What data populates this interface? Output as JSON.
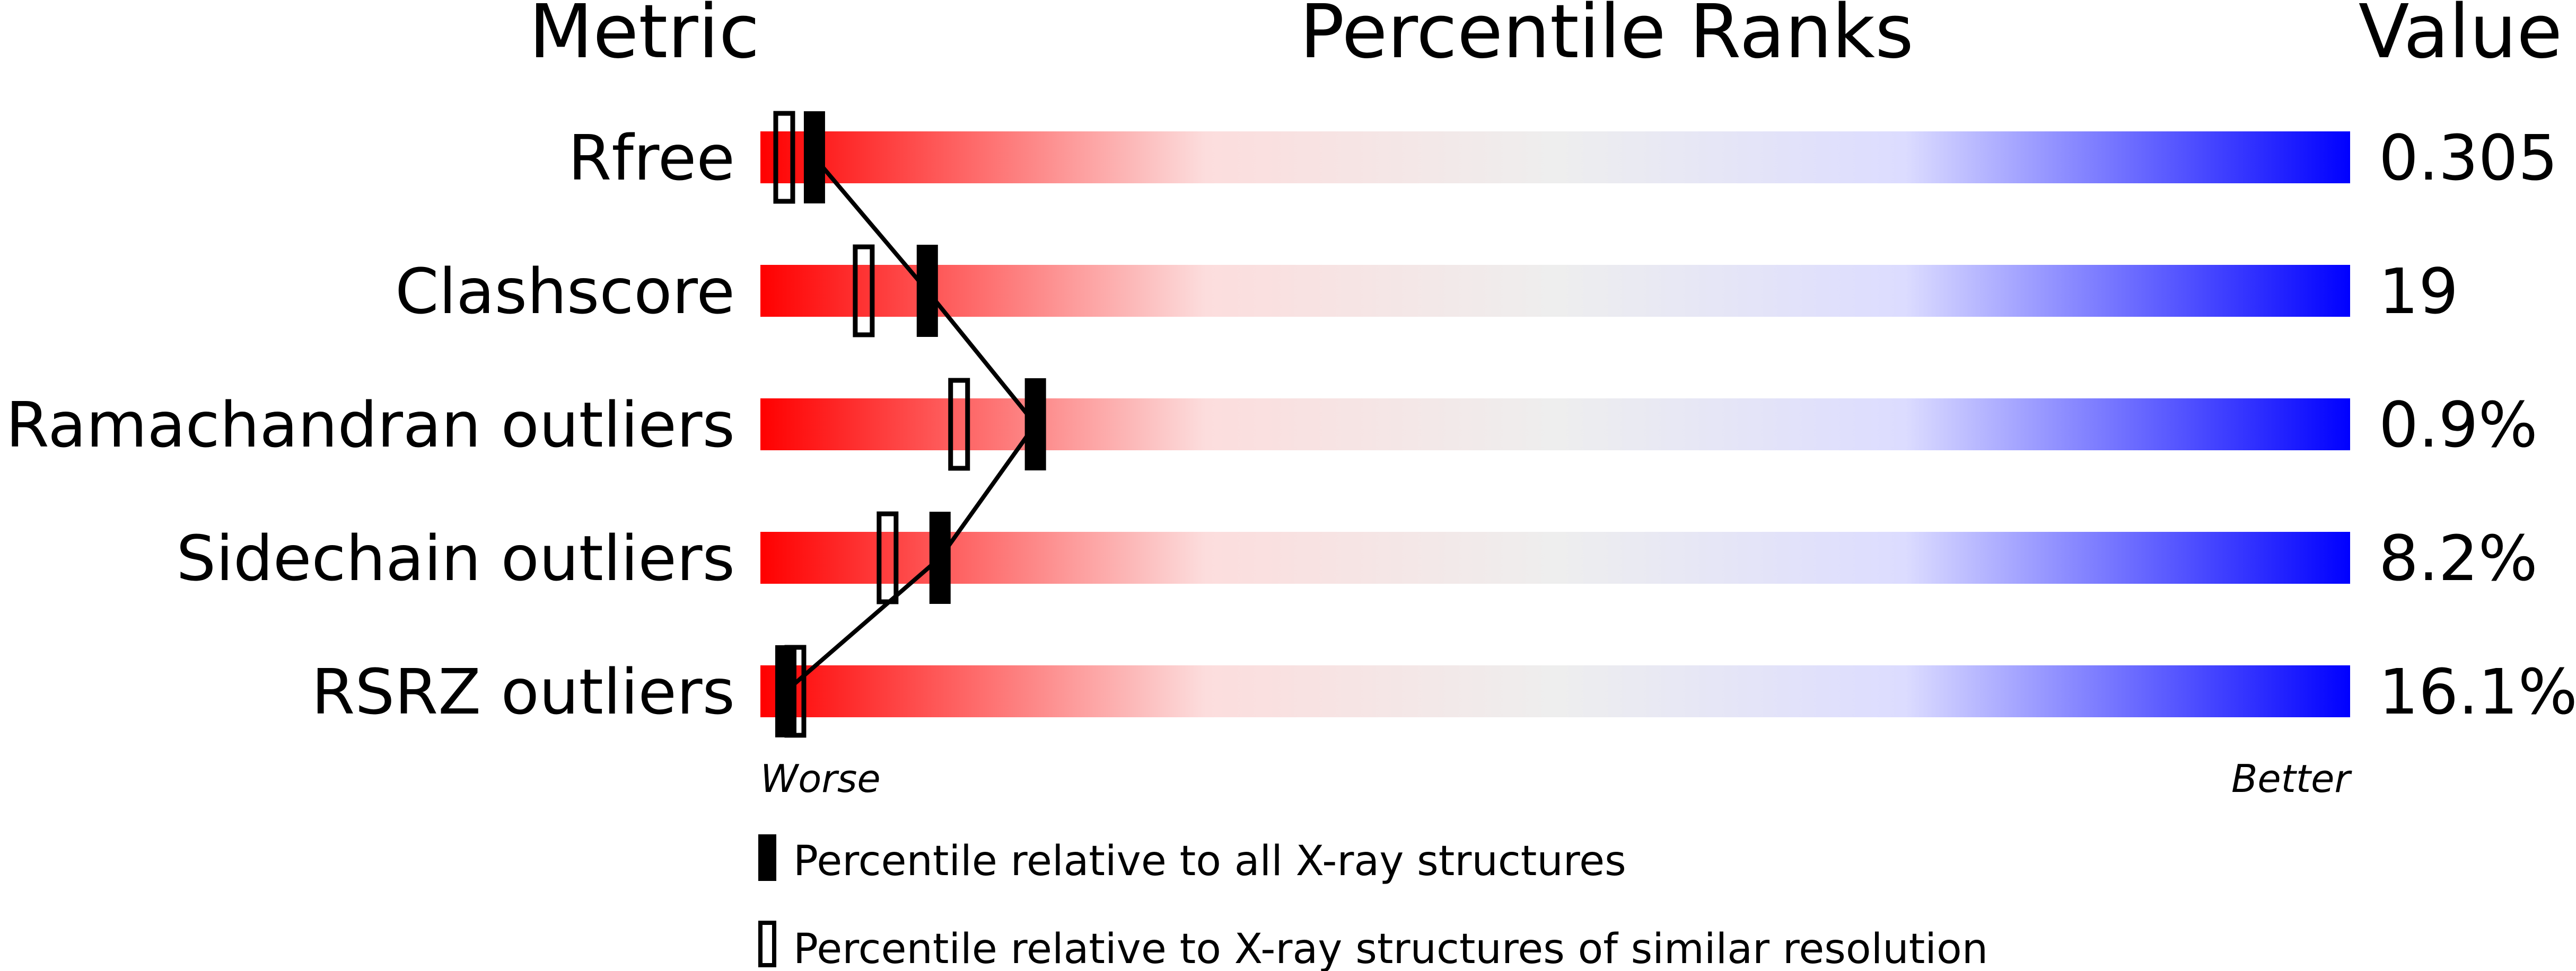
{
  "chart_data": {
    "type": "percentile-bar",
    "headers": {
      "metric": "Metric",
      "ranks": "Percentile Ranks",
      "value": "Value"
    },
    "xlim": [
      0,
      100
    ],
    "axis_labels": {
      "left": "Worse",
      "right": "Better"
    },
    "gradient_colors": [
      "#ff0000",
      "#fcdddd",
      "#eeeeee",
      "#dcdcff",
      "#0000ff"
    ],
    "rows": [
      {
        "metric": "Rfree",
        "value": "0.305",
        "percentile_all": 3.4,
        "percentile_similar": 1.5
      },
      {
        "metric": "Clashscore",
        "value": "19",
        "percentile_all": 10.5,
        "percentile_similar": 6.5
      },
      {
        "metric": "Ramachandran outliers",
        "value": "0.9%",
        "percentile_all": 17.3,
        "percentile_similar": 12.5
      },
      {
        "metric": "Sidechain outliers",
        "value": "8.2%",
        "percentile_all": 11.3,
        "percentile_similar": 8.0
      },
      {
        "metric": "RSRZ outliers",
        "value": "16.1%",
        "percentile_all": 1.6,
        "percentile_similar": 2.2
      }
    ],
    "legend": [
      {
        "marker": "filled",
        "label": "Percentile relative to all X-ray structures"
      },
      {
        "marker": "open",
        "label": "Percentile relative to X-ray structures of similar resolution"
      }
    ]
  }
}
